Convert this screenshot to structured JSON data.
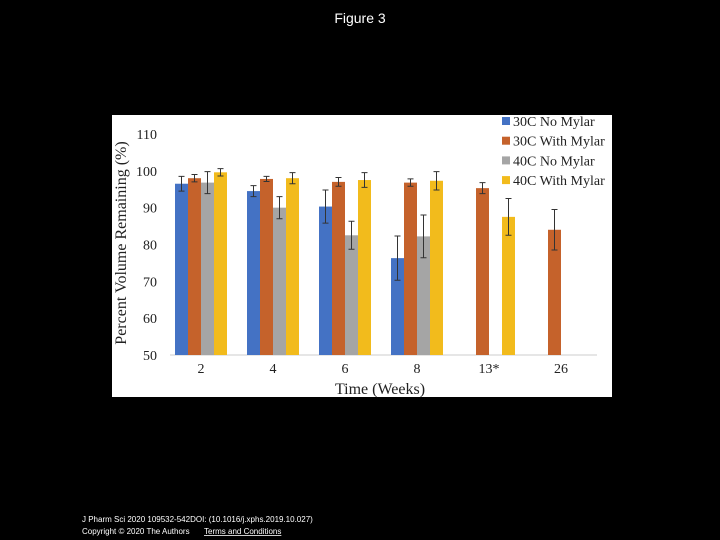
{
  "title": "Figure 3",
  "chart_data": {
    "type": "bar",
    "x_label": "Time (Weeks)",
    "y_label": "Percent Volume Remaining (%)",
    "categories": [
      "2",
      "4",
      "6",
      "8",
      "13*",
      "26"
    ],
    "series": [
      {
        "name": "30C No Mylar",
        "color": "#4472c4",
        "values": [
          96.5,
          94.5,
          90.3,
          76.3,
          null,
          null
        ],
        "errors": [
          2,
          1.5,
          4.5,
          6,
          null,
          null
        ]
      },
      {
        "name": "30C With Mylar",
        "color": "#c5622b",
        "values": [
          98,
          97.8,
          97,
          96.8,
          95.3,
          84
        ],
        "errors": [
          1,
          0.7,
          1.2,
          1,
          1.5,
          5.5
        ]
      },
      {
        "name": "40C No Mylar",
        "color": "#a5a5a5",
        "values": [
          96.8,
          90,
          82.5,
          82.2,
          null,
          null
        ],
        "errors": [
          3,
          3,
          3.8,
          5.8,
          null,
          null
        ]
      },
      {
        "name": "40C With Mylar",
        "color": "#f2bb1c",
        "values": [
          99.6,
          98,
          97.5,
          97.3,
          87.5,
          null
        ],
        "errors": [
          1,
          1.5,
          2,
          2.5,
          5,
          null
        ]
      }
    ],
    "ylim": [
      50,
      110
    ],
    "yticks": [
      50,
      60,
      70,
      80,
      90,
      100,
      110
    ],
    "grid": false,
    "legend": "top-right"
  },
  "footer": {
    "citation": "J Pharm Sci 2020 109532-542DOI: (10.1016/j.xphs.2019.10.027)",
    "copyright": "Copyright © 2020 The Authors",
    "link": "Terms and Conditions"
  }
}
